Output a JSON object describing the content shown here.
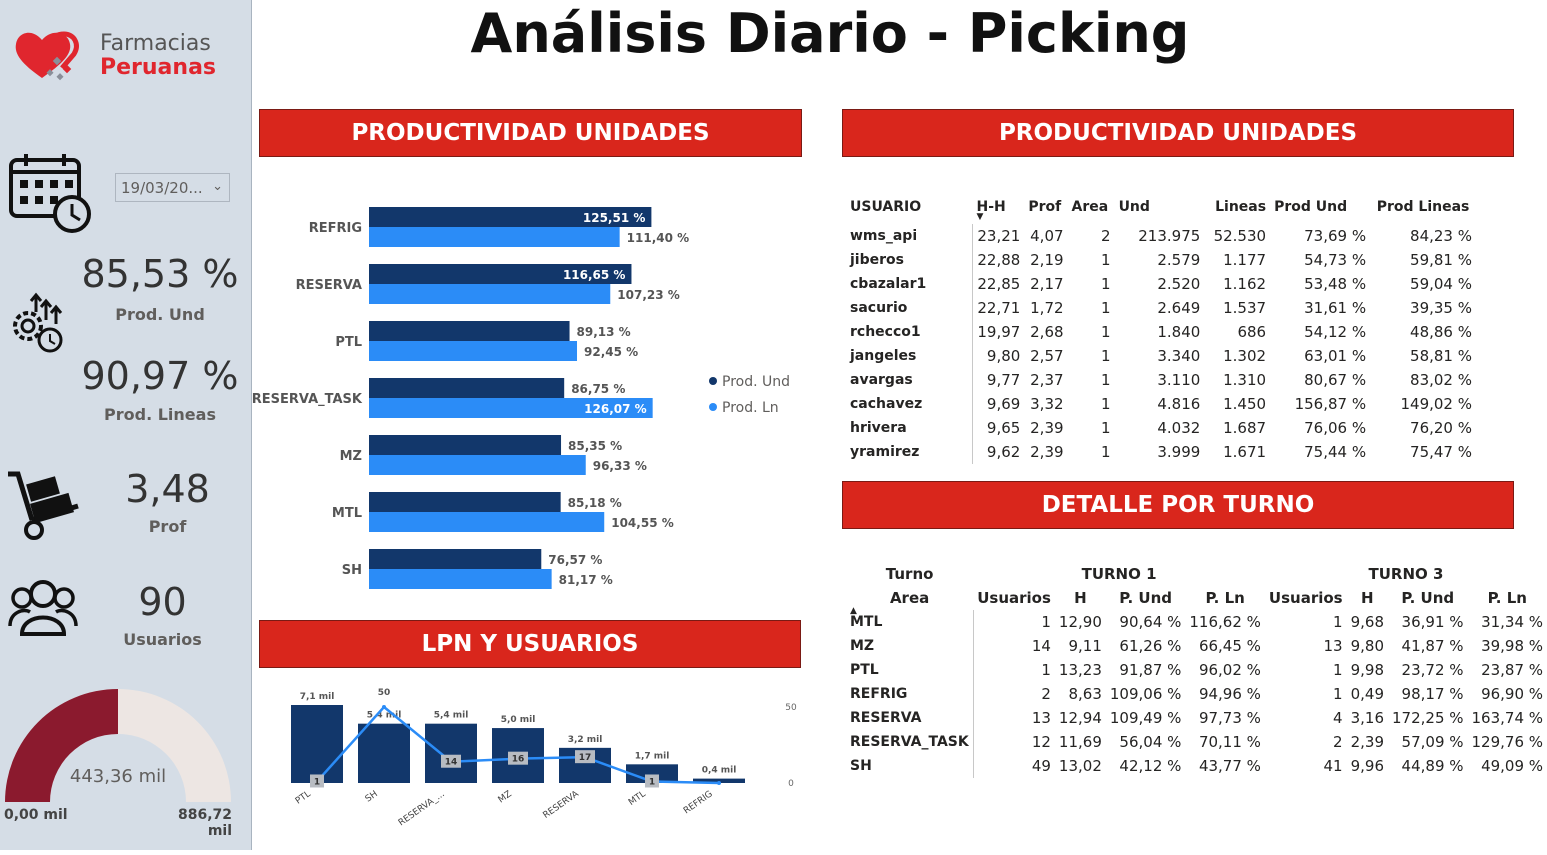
{
  "title": "Análisis Diario - Picking",
  "logo": {
    "line1": "Farmacias",
    "line2": "Peruanas"
  },
  "sidebar": {
    "date_value": "19/03/20...",
    "prod_und": {
      "value": "85,53 %",
      "label": "Prod. Und"
    },
    "prod_lineas": {
      "value": "90,97 %",
      "label": "Prod. Lineas"
    },
    "prof": {
      "value": "3,48",
      "label": "Prof"
    },
    "usuarios": {
      "value": "90",
      "label": "Usuarios"
    },
    "gauge": {
      "value_label": "443,36 mil",
      "min_label": "0,00 mil",
      "max_label": "886,72 mil",
      "value": 443.36,
      "min": 0,
      "max": 886.72
    },
    "icons": [
      "calendar-clock-icon",
      "gears-icon",
      "hand-truck-icon",
      "users-group-icon"
    ]
  },
  "banners": {
    "prod_left": "PRODUCTIVIDAD UNIDADES",
    "prod_right": "PRODUCTIVIDAD UNIDADES",
    "lpn": "LPN Y USUARIOS",
    "detalle": "DETALLE POR TURNO"
  },
  "colors": {
    "accent_red": "#d9261c",
    "dark_blue": "#12376b",
    "light_blue": "#2b8cf7",
    "gauge_fill": "#8b1a2e",
    "gauge_bg": "#ede6e3"
  },
  "chart_data": [
    {
      "type": "bar",
      "orientation": "horizontal",
      "categories": [
        "REFRIG",
        "RESERVA",
        "PTL",
        "RESERVA_TASK",
        "MZ",
        "MTL",
        "SH"
      ],
      "series": [
        {
          "name": "Prod. Und",
          "values": [
            125.51,
            116.65,
            89.13,
            86.75,
            85.35,
            85.18,
            76.57
          ],
          "labels": [
            "125,51 %",
            "116,65 %",
            "89,13 %",
            "86,75 %",
            "85,35 %",
            "85,18 %",
            "76,57 %"
          ]
        },
        {
          "name": "Prod. Ln",
          "values": [
            111.4,
            107.23,
            92.45,
            126.07,
            96.33,
            104.55,
            81.17
          ],
          "labels": [
            "111,40 %",
            "107,23 %",
            "92,45 %",
            "126,07 %",
            "96,33 %",
            "104,55 %",
            "81,17 %"
          ]
        }
      ],
      "legend": "right"
    },
    {
      "type": "bar",
      "combo": "bar-line",
      "categories": [
        "PTL",
        "SH",
        "RESERVA_...",
        "MZ",
        "RESERVA",
        "MTL",
        "REFRIG"
      ],
      "series": [
        {
          "name": "LPN",
          "values": [
            7.1,
            5.4,
            5.4,
            5.0,
            3.2,
            1.7,
            0.4
          ],
          "labels": [
            "7,1 mil",
            "5,4 mil",
            "5,4 mil",
            "5,0 mil",
            "3,2 mil",
            "1,7 mil",
            "0,4 mil"
          ]
        },
        {
          "name": "Usuarios",
          "type": "line",
          "values": [
            1,
            50,
            14,
            16,
            17,
            1,
            0
          ],
          "labels": [
            "1",
            "50",
            "14",
            "16",
            "17",
            "1",
            ""
          ]
        }
      ],
      "secondary_axis_ticks": [
        "50",
        "0"
      ],
      "secondary_ylim": [
        0,
        50
      ]
    }
  ],
  "user_table": {
    "headers": [
      "USUARIO",
      "H-H",
      "Prof",
      "Area",
      "Und",
      "Lineas",
      "Prod Und",
      "Prod Lineas"
    ],
    "rows": [
      [
        "wms_api",
        "23,21",
        "4,07",
        "2",
        "213.975",
        "52.530",
        "73,69 %",
        "84,23 %"
      ],
      [
        "jiberos",
        "22,88",
        "2,19",
        "1",
        "2.579",
        "1.177",
        "54,73 %",
        "59,81 %"
      ],
      [
        "cbazalar1",
        "22,85",
        "2,17",
        "1",
        "2.520",
        "1.162",
        "53,48 %",
        "59,04 %"
      ],
      [
        "sacurio",
        "22,71",
        "1,72",
        "1",
        "2.649",
        "1.537",
        "31,61 %",
        "39,35 %"
      ],
      [
        "rchecco1",
        "19,97",
        "2,68",
        "1",
        "1.840",
        "686",
        "54,12 %",
        "48,86 %"
      ],
      [
        "jangeles",
        "9,80",
        "2,57",
        "1",
        "3.340",
        "1.302",
        "63,01 %",
        "58,81 %"
      ],
      [
        "avargas",
        "9,77",
        "2,37",
        "1",
        "3.110",
        "1.310",
        "80,67 %",
        "83,02 %"
      ],
      [
        "cachavez",
        "9,69",
        "3,32",
        "1",
        "4.816",
        "1.450",
        "156,87 %",
        "149,02 %"
      ],
      [
        "hrivera",
        "9,65",
        "2,39",
        "1",
        "4.032",
        "1.687",
        "76,06 %",
        "76,20 %"
      ],
      [
        "yramirez",
        "9,62",
        "2,39",
        "1",
        "3.999",
        "1.671",
        "75,44 %",
        "75,47 %"
      ]
    ]
  },
  "turno_table": {
    "corner_top": "Turno",
    "corner_bottom": "Area",
    "group1": "TURNO 1",
    "group2": "TURNO 3",
    "subheaders": [
      "Usuarios",
      "H",
      "P. Und",
      "P. Ln",
      "Usuarios",
      "H",
      "P. Und",
      "P. Ln"
    ],
    "rows": [
      [
        "MTL",
        "1",
        "12,90",
        "90,64 %",
        "116,62 %",
        "1",
        "9,68",
        "36,91 %",
        "31,34 %"
      ],
      [
        "MZ",
        "14",
        "9,11",
        "61,26 %",
        "66,45 %",
        "13",
        "9,80",
        "41,87 %",
        "39,98 %"
      ],
      [
        "PTL",
        "1",
        "13,23",
        "91,87 %",
        "96,02 %",
        "1",
        "9,98",
        "23,72 %",
        "23,87 %"
      ],
      [
        "REFRIG",
        "2",
        "8,63",
        "109,06 %",
        "94,96 %",
        "1",
        "0,49",
        "98,17 %",
        "96,90 %"
      ],
      [
        "RESERVA",
        "13",
        "12,94",
        "109,49 %",
        "97,73 %",
        "4",
        "3,16",
        "172,25 %",
        "163,74 %"
      ],
      [
        "RESERVA_TASK",
        "12",
        "11,69",
        "56,04 %",
        "70,11 %",
        "2",
        "2,39",
        "57,09 %",
        "129,76 %"
      ],
      [
        "SH",
        "49",
        "13,02",
        "42,12 %",
        "43,77 %",
        "41",
        "9,96",
        "44,89 %",
        "49,09 %"
      ]
    ]
  }
}
